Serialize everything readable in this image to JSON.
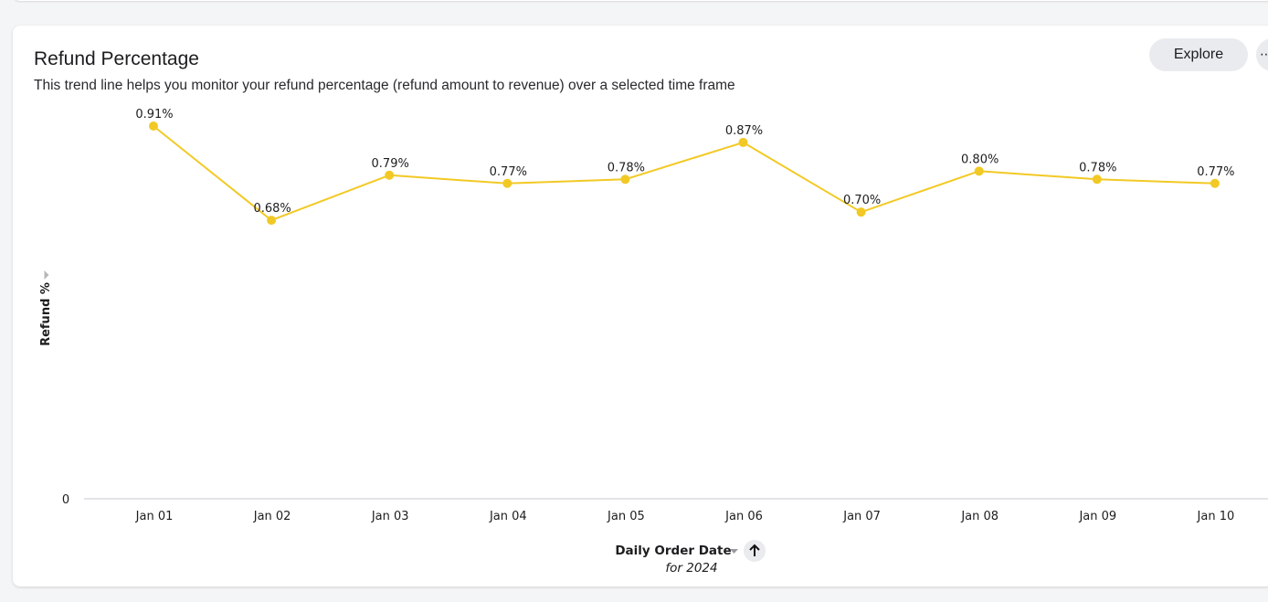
{
  "card": {
    "title": "Refund Percentage",
    "subtitle": "This trend line helps you monitor your refund percentage (refund amount to revenue) over a selected time frame",
    "explore_label": "Explore",
    "more_icon": "more-horizontal-icon"
  },
  "chart_data": {
    "type": "line",
    "categories": [
      "Jan 01",
      "Jan 02",
      "Jan 03",
      "Jan 04",
      "Jan 05",
      "Jan 06",
      "Jan 07",
      "Jan 08",
      "Jan 09",
      "Jan 10"
    ],
    "series": [
      {
        "values": [
          0.91,
          0.68,
          0.79,
          0.77,
          0.78,
          0.87,
          0.7,
          0.8,
          0.78,
          0.77
        ],
        "labels": [
          "0.91%",
          "0.68%",
          "0.79%",
          "0.77%",
          "0.78%",
          "0.87%",
          "0.70%",
          "0.80%",
          "0.78%",
          "0.77%"
        ],
        "color": "#f2c924"
      }
    ],
    "ylabel": "Refund %",
    "xlabel": "Daily Order Date",
    "xlabel_sub": "for 2024",
    "y_tick_labels": [
      "0"
    ],
    "ylim": [
      0,
      0.91
    ],
    "grid": false,
    "legend": false,
    "sort_icon": "arrow-up-icon",
    "xlabel_dropdown_icon": "caret-down-icon",
    "ylabel_toggle_icon": "caret-right-icon",
    "axis_color": "#e4e4e8"
  }
}
